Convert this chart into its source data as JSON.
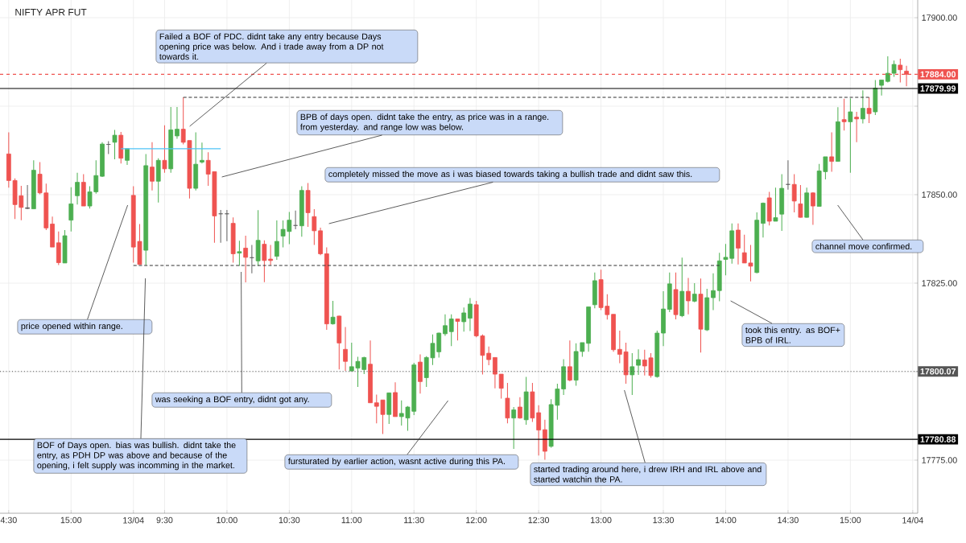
{
  "chart_data": {
    "type": "candlestick",
    "title": "NIFTY APR FUT",
    "categories": [
      "4:30",
      null,
      null,
      null,
      null,
      null,
      null,
      null,
      null,
      null,
      "15:00",
      null,
      null,
      null,
      null,
      null,
      null,
      null,
      null,
      null,
      "13/04",
      null,
      null,
      null,
      null,
      "9:30",
      null,
      null,
      null,
      null,
      null,
      null,
      null,
      null,
      null,
      "10:00",
      null,
      null,
      null,
      null,
      null,
      null,
      null,
      null,
      null,
      "10:30",
      null,
      null,
      null,
      null,
      null,
      null,
      null,
      null,
      null,
      "11:00",
      null,
      null,
      null,
      null,
      null,
      null,
      null,
      null,
      null,
      "11:30",
      null,
      null,
      null,
      null,
      null,
      null,
      null,
      null,
      null,
      "12:00",
      null,
      null,
      null,
      null,
      null,
      null,
      null,
      null,
      null,
      "12:30",
      null,
      null,
      null,
      null,
      null,
      null,
      null,
      null,
      null,
      "13:00",
      null,
      null,
      null,
      null,
      null,
      null,
      null,
      null,
      null,
      "13:30",
      null,
      null,
      null,
      null,
      null,
      null,
      null,
      null,
      null,
      "14:00",
      null,
      null,
      null,
      null,
      null,
      null,
      null,
      null,
      null,
      "14:30",
      null,
      null,
      null,
      null,
      null,
      null,
      null,
      null,
      null,
      "15:00",
      null,
      null,
      null,
      null,
      null,
      null,
      null,
      null,
      null,
      "14/04"
    ],
    "ohlc": [
      [
        17861.5,
        17867.6,
        17852.0,
        17854.0
      ],
      [
        17854.0,
        17854.6,
        17843.1,
        17847.2
      ],
      [
        17849.7,
        17852.5,
        17842.8,
        17846.4
      ],
      [
        17846.3,
        17852.7,
        17845.9,
        17846.1
      ],
      [
        17846.0,
        17859.7,
        17846.0,
        17856.9
      ],
      [
        17855.8,
        17859.2,
        17850.1,
        17850.5
      ],
      [
        17850.5,
        17853.1,
        17840.0,
        17840.6
      ],
      [
        17841.7,
        17843.8,
        17835.2,
        17835.2
      ],
      [
        17836.4,
        17839.6,
        17830.1,
        17830.8
      ],
      [
        17830.7,
        17840.0,
        17830.7,
        17838.4
      ],
      [
        17842.8,
        17852.1,
        17839.6,
        17847.4
      ],
      [
        17849.7,
        17856.2,
        17847.2,
        17853.5
      ],
      [
        17853.5,
        17855.8,
        17846.8,
        17846.8
      ],
      [
        17846.8,
        17852.4,
        17846.1,
        17850.8
      ],
      [
        17850.8,
        17859.7,
        17850.3,
        17855.4
      ],
      [
        17855.2,
        17864.8,
        17855.0,
        17864.3
      ],
      [
        17864.2,
        17865.1,
        17861.5,
        17864.2
      ],
      [
        17864.8,
        17868.3,
        17860.0,
        17866.8
      ],
      [
        17866.8,
        17867.7,
        17858.8,
        17860.3
      ],
      [
        17859.7,
        17863.0,
        17858.4,
        17863.0
      ],
      [
        17849.8,
        17852.4,
        17830.8,
        17835.2
      ],
      [
        17836.8,
        17841.7,
        17830.3,
        17830.3
      ],
      [
        17834.3,
        17861.5,
        17830.1,
        17858.2
      ],
      [
        17857.8,
        17864.8,
        17851.2,
        17853.8
      ],
      [
        17853.8,
        17860.3,
        17847.8,
        17859.7
      ],
      [
        17859.7,
        17869.6,
        17856.2,
        17857.3
      ],
      [
        17857.3,
        17874.8,
        17856.2,
        17868.3
      ],
      [
        17866.6,
        17874.8,
        17865.8,
        17868.5
      ],
      [
        17868.5,
        17877.5,
        17864.2,
        17864.8
      ],
      [
        17865.3,
        17865.3,
        17848.9,
        17851.8
      ],
      [
        17851.8,
        17867.6,
        17851.2,
        17858.6
      ],
      [
        17859.2,
        17864.7,
        17858.8,
        17859.7
      ],
      [
        17859.7,
        17862.0,
        17852.5,
        17855.8
      ],
      [
        17856.5,
        17856.5,
        17836.4,
        17844.0
      ],
      [
        17844.6,
        17845.7,
        17836.4,
        17844.6
      ],
      [
        17844.6,
        17845.7,
        17836.9,
        17844.6
      ],
      [
        17841.9,
        17843.6,
        17830.8,
        17833.3
      ],
      [
        17833.5,
        17837.0,
        17829.9,
        17833.9
      ],
      [
        17834.9,
        17838.4,
        17825.2,
        17832.3
      ],
      [
        17832.2,
        17835.8,
        17827.8,
        17832.2
      ],
      [
        17831.3,
        17845.6,
        17829.9,
        17837.1
      ],
      [
        17836.0,
        17837.1,
        17825.3,
        17831.4
      ],
      [
        17831.8,
        17835.8,
        17830.1,
        17831.4
      ],
      [
        17832.6,
        17842.7,
        17831.6,
        17836.8
      ],
      [
        17838.3,
        17842.7,
        17835.1,
        17840.2
      ],
      [
        17839.6,
        17845.1,
        17836.0,
        17842.8
      ],
      [
        17841.3,
        17845.5,
        17840.2,
        17841.3
      ],
      [
        17841.2,
        17852.4,
        17838.1,
        17851.2
      ],
      [
        17851.2,
        17853.3,
        17840.9,
        17844.9
      ],
      [
        17843.8,
        17845.9,
        17835.8,
        17839.8
      ],
      [
        17839.8,
        17840.7,
        17832.9,
        17833.3
      ],
      [
        17833.3,
        17835.1,
        17811.8,
        17813.5
      ],
      [
        17813.5,
        17820.0,
        17813.3,
        17815.4
      ],
      [
        17815.7,
        17815.8,
        17800.6,
        17808.1
      ],
      [
        17806.3,
        17812.6,
        17800.2,
        17802.9
      ],
      [
        17800.2,
        17808.2,
        17800.1,
        17801.4
      ],
      [
        17801.0,
        17804.2,
        17795.7,
        17802.9
      ],
      [
        17800.6,
        17804.2,
        17799.3,
        17804.0
      ],
      [
        17802.1,
        17808.8,
        17791.2,
        17791.2
      ],
      [
        17791.2,
        17793.5,
        17785.4,
        17790.2
      ],
      [
        17792.0,
        17792.0,
        17782.4,
        17787.9
      ],
      [
        17787.9,
        17794.1,
        17785.2,
        17794.0
      ],
      [
        17794.1,
        17797.0,
        17787.3,
        17787.3
      ],
      [
        17787.3,
        17791.9,
        17784.8,
        17788.2
      ],
      [
        17786.9,
        17790.3,
        17783.3,
        17790.0
      ],
      [
        17788.8,
        17802.5,
        17787.7,
        17801.9
      ],
      [
        17802.7,
        17804.9,
        17793.8,
        17797.2
      ],
      [
        17798.3,
        17804.4,
        17795.7,
        17804.0
      ],
      [
        17803.9,
        17810.5,
        17801.9,
        17808.0
      ],
      [
        17805.6,
        17811.0,
        17804.0,
        17810.9
      ],
      [
        17810.7,
        17816.2,
        17810.1,
        17813.0
      ],
      [
        17811.3,
        17816.2,
        17807.2,
        17814.9
      ],
      [
        17814.9,
        17814.9,
        17808.8,
        17814.2
      ],
      [
        17814.1,
        17818.1,
        17811.3,
        17816.6
      ],
      [
        17815.1,
        17820.8,
        17811.5,
        17819.1
      ],
      [
        17818.9,
        17820.0,
        17809.7,
        17810.1
      ],
      [
        17810.1,
        17810.5,
        17799.2,
        17804.6
      ],
      [
        17805.2,
        17807.1,
        17801.8,
        17803.4
      ],
      [
        17804.0,
        17804.0,
        17795.3,
        17799.3
      ],
      [
        17799.3,
        17799.3,
        17792.4,
        17795.3
      ],
      [
        17792.5,
        17796.8,
        17785.4,
        17786.9
      ],
      [
        17786.9,
        17790.0,
        17778.2,
        17789.2
      ],
      [
        17790.0,
        17792.8,
        17786.7,
        17786.9
      ],
      [
        17786.4,
        17798.5,
        17785.0,
        17794.3
      ],
      [
        17794.3,
        17796.8,
        17785.8,
        17786.9
      ],
      [
        17788.4,
        17790.5,
        17776.3,
        17783.5
      ],
      [
        17783.6,
        17786.4,
        17775.1,
        17777.5
      ],
      [
        17778.9,
        17792.2,
        17778.5,
        17790.7
      ],
      [
        17790.5,
        17796.6,
        17786.4,
        17795.1
      ],
      [
        17795.1,
        17803.5,
        17793.4,
        17801.4
      ],
      [
        17801.4,
        17808.8,
        17797.3,
        17797.6
      ],
      [
        17797.6,
        17808.0,
        17796.0,
        17805.7
      ],
      [
        17805.7,
        17808.2,
        17804.2,
        17808.2
      ],
      [
        17808.0,
        17818.3,
        17805.6,
        17818.3
      ],
      [
        17818.9,
        17828.0,
        17817.9,
        17825.7
      ],
      [
        17826.0,
        17828.8,
        17817.4,
        17818.1
      ],
      [
        17818.5,
        17821.9,
        17814.7,
        17816.1
      ],
      [
        17816.2,
        17816.2,
        17805.6,
        17806.2
      ],
      [
        17806.3,
        17811.6,
        17802.4,
        17804.9
      ],
      [
        17805.6,
        17808.2,
        17796.6,
        17799.1
      ],
      [
        17799.1,
        17805.2,
        17793.4,
        17801.4
      ],
      [
        17801.8,
        17806.3,
        17799.1,
        17803.4
      ],
      [
        17803.3,
        17806.2,
        17798.9,
        17801.6
      ],
      [
        17803.9,
        17805.2,
        17798.3,
        17798.9
      ],
      [
        17798.6,
        17811.6,
        17798.3,
        17810.9
      ],
      [
        17810.9,
        17822.7,
        17807.2,
        17817.7
      ],
      [
        17817.6,
        17828.0,
        17816.8,
        17824.8
      ],
      [
        17823.2,
        17828.0,
        17814.8,
        17816.1
      ],
      [
        17815.8,
        17832.2,
        17815.4,
        17822.7
      ],
      [
        17822.7,
        17826.5,
        17816.2,
        17820.0
      ],
      [
        17819.9,
        17825.0,
        17819.6,
        17821.9
      ],
      [
        17821.9,
        17826.3,
        17805.4,
        17812.0
      ],
      [
        17811.8,
        17823.4,
        17811.5,
        17820.9
      ],
      [
        17820.9,
        17827.8,
        17817.4,
        17822.9
      ],
      [
        17822.9,
        17833.6,
        17819.9,
        17831.3
      ],
      [
        17831.7,
        17836.1,
        17827.2,
        17832.3
      ],
      [
        17832.0,
        17841.9,
        17830.5,
        17839.8
      ],
      [
        17840.0,
        17841.9,
        17830.3,
        17834.9
      ],
      [
        17833.6,
        17838.7,
        17830.7,
        17830.7
      ],
      [
        17830.7,
        17835.8,
        17825.5,
        17829.8
      ],
      [
        17828.0,
        17845.0,
        17827.8,
        17842.8
      ],
      [
        17841.9,
        17847.8,
        17837.9,
        17847.6
      ],
      [
        17849.1,
        17850.8,
        17841.3,
        17842.5
      ],
      [
        17842.5,
        17852.0,
        17842.5,
        17843.5
      ],
      [
        17844.5,
        17855.8,
        17839.8,
        17851.8
      ],
      [
        17852.9,
        17859.7,
        17851.4,
        17852.9
      ],
      [
        17852.9,
        17855.8,
        17845.0,
        17848.2
      ],
      [
        17847.4,
        17852.7,
        17843.5,
        17843.6
      ],
      [
        17843.6,
        17852.0,
        17843.5,
        17850.5
      ],
      [
        17850.5,
        17850.7,
        17841.5,
        17846.8
      ],
      [
        17846.7,
        17858.7,
        17846.7,
        17856.7
      ],
      [
        17856.5,
        17860.7,
        17854.3,
        17860.7
      ],
      [
        17860.7,
        17867.6,
        17856.5,
        17859.4
      ],
      [
        17859.4,
        17874.7,
        17859.4,
        17870.6
      ],
      [
        17871.2,
        17877.1,
        17868.1,
        17870.6
      ],
      [
        17870.6,
        17877.2,
        17856.2,
        17873.4
      ],
      [
        17871.9,
        17873.4,
        17864.8,
        17871.4
      ],
      [
        17871.4,
        17879.5,
        17870.1,
        17874.4
      ],
      [
        17874.4,
        17877.5,
        17870.2,
        17872.9
      ],
      [
        17873.4,
        17882.4,
        17872.5,
        17880.1
      ],
      [
        17880.9,
        17882.4,
        17878.0,
        17882.4
      ],
      [
        17882.0,
        17889.1,
        17881.7,
        17884.3
      ],
      [
        17884.3,
        17887.9,
        17883.3,
        17886.8
      ],
      [
        17886.6,
        17888.4,
        17881.7,
        17885.3
      ],
      [
        17884.9,
        17886.4,
        17880.6,
        17884.0
      ],
      null
    ],
    "colors": [
      "#ef5350",
      "#ef5350",
      "#ef5350",
      "#616161",
      "#4caf50",
      "#ef5350",
      "#ef5350",
      "#ef5350",
      "#ef5350",
      "#4caf50",
      "#4caf50",
      "#4caf50",
      "#ef5350",
      "#4caf50",
      "#4caf50",
      "#4caf50",
      "#616161",
      "#4caf50",
      "#ef5350",
      "#4caf50",
      "#ef5350",
      "#ef5350",
      "#4caf50",
      "#ef5350",
      "#4caf50",
      "#ef5350",
      "#4caf50",
      "#4caf50",
      "#ef5350",
      "#ef5350",
      "#4caf50",
      "#4caf50",
      "#ef5350",
      "#ef5350",
      "#616161",
      "#616161",
      "#ef5350",
      "#4caf50",
      "#ef5350",
      "#616161",
      "#4caf50",
      "#ef5350",
      "#ef5350",
      "#4caf50",
      "#4caf50",
      "#4caf50",
      "#616161",
      "#4caf50",
      "#ef5350",
      "#ef5350",
      "#ef5350",
      "#ef5350",
      "#4caf50",
      "#ef5350",
      "#ef5350",
      "#4caf50",
      "#4caf50",
      "#4caf50",
      "#ef5350",
      "#ef5350",
      "#ef5350",
      "#4caf50",
      "#ef5350",
      "#4caf50",
      "#4caf50",
      "#4caf50",
      "#ef5350",
      "#4caf50",
      "#4caf50",
      "#4caf50",
      "#4caf50",
      "#4caf50",
      "#ef5350",
      "#4caf50",
      "#4caf50",
      "#ef5350",
      "#ef5350",
      "#ef5350",
      "#ef5350",
      "#ef5350",
      "#ef5350",
      "#4caf50",
      "#ef5350",
      "#4caf50",
      "#ef5350",
      "#ef5350",
      "#ef5350",
      "#4caf50",
      "#4caf50",
      "#4caf50",
      "#ef5350",
      "#4caf50",
      "#4caf50",
      "#4caf50",
      "#4caf50",
      "#ef5350",
      "#ef5350",
      "#ef5350",
      "#ef5350",
      "#ef5350",
      "#4caf50",
      "#4caf50",
      "#ef5350",
      "#ef5350",
      "#4caf50",
      "#4caf50",
      "#4caf50",
      "#ef5350",
      "#4caf50",
      "#ef5350",
      "#4caf50",
      "#ef5350",
      "#4caf50",
      "#4caf50",
      "#4caf50",
      "#4caf50",
      "#4caf50",
      "#ef5350",
      "#ef5350",
      "#ef5350",
      "#4caf50",
      "#4caf50",
      "#ef5350",
      "#4caf50",
      "#4caf50",
      "#616161",
      "#ef5350",
      "#ef5350",
      "#4caf50",
      "#ef5350",
      "#4caf50",
      "#4caf50",
      "#ef5350",
      "#4caf50",
      "#ef5350",
      "#4caf50",
      "#ef5350",
      "#4caf50",
      "#ef5350",
      "#4caf50",
      "#4caf50",
      "#4caf50",
      "#4caf50",
      "#ef5350",
      "#ef5350",
      null
    ],
    "series": [
      {
        "type": "line",
        "color": "#333333",
        "line_style": "dashed",
        "values": [
          null,
          null,
          null,
          null,
          null,
          null,
          null,
          null,
          null,
          null,
          null,
          null,
          null,
          null,
          null,
          null,
          null,
          null,
          null,
          null,
          null,
          null,
          null,
          null,
          null,
          null,
          null,
          null,
          17877.5,
          null,
          null,
          null,
          null,
          null,
          null,
          null,
          null,
          null,
          null,
          null,
          null,
          null,
          null,
          null,
          null,
          null,
          null,
          null,
          null,
          null,
          null,
          null,
          null,
          null,
          null,
          null,
          null,
          null,
          null,
          null,
          null,
          null,
          null,
          null,
          null,
          null,
          null,
          null,
          null,
          null,
          null,
          null,
          null,
          null,
          null,
          null,
          null,
          null,
          null,
          null,
          null,
          null,
          null,
          null,
          null,
          null,
          null,
          null,
          null,
          null,
          null,
          null,
          null,
          null,
          null,
          null,
          null,
          null,
          null,
          null,
          null,
          null,
          null,
          null,
          null,
          null,
          null,
          null,
          null,
          null,
          null,
          null,
          null,
          null,
          null,
          null,
          null,
          null,
          null,
          null,
          null,
          null,
          null,
          null,
          null,
          null,
          null,
          null,
          null,
          null,
          null,
          null,
          null,
          null,
          null,
          null,
          null,
          null,
          17877.5,
          null,
          null,
          null,
          null,
          null,
          null,
          null
        ]
      },
      {
        "type": "line",
        "color": "#333333",
        "line_style": "dashed",
        "values": [
          null,
          null,
          null,
          null,
          null,
          null,
          null,
          null,
          null,
          null,
          null,
          null,
          null,
          null,
          null,
          null,
          null,
          null,
          null,
          null,
          17830.0,
          null,
          null,
          null,
          null,
          null,
          null,
          null,
          null,
          null,
          null,
          null,
          null,
          null,
          null,
          null,
          null,
          null,
          null,
          null,
          null,
          null,
          null,
          null,
          null,
          null,
          null,
          null,
          null,
          null,
          null,
          null,
          null,
          null,
          null,
          null,
          null,
          null,
          null,
          null,
          null,
          null,
          null,
          null,
          null,
          null,
          null,
          null,
          null,
          null,
          null,
          null,
          null,
          null,
          null,
          null,
          null,
          null,
          null,
          null,
          null,
          null,
          null,
          null,
          null,
          null,
          null,
          null,
          null,
          null,
          null,
          null,
          null,
          null,
          null,
          null,
          null,
          null,
          null,
          null,
          null,
          null,
          null,
          null,
          null,
          null,
          null,
          null,
          null,
          null,
          null,
          null,
          null,
          null,
          17830.0,
          null,
          null,
          null,
          null,
          null,
          null,
          null,
          null,
          null,
          null,
          null,
          null,
          null,
          null,
          null,
          null,
          null,
          null,
          null,
          null,
          null,
          null,
          null,
          null,
          null,
          null,
          null,
          null,
          null,
          null,
          null
        ]
      },
      {
        "type": "line",
        "color": "#4fc3f7",
        "line_style": "solid",
        "values": [
          null,
          null,
          null,
          null,
          null,
          null,
          null,
          null,
          null,
          null,
          null,
          null,
          null,
          null,
          null,
          null,
          null,
          null,
          17863.0,
          null,
          null,
          null,
          null,
          null,
          null,
          null,
          null,
          null,
          null,
          null,
          null,
          null,
          null,
          null,
          17863.0,
          null,
          null,
          null,
          null,
          null,
          null,
          null,
          null,
          null,
          null,
          null,
          null,
          null,
          null,
          null,
          null,
          null,
          null,
          null,
          null,
          null,
          null,
          null,
          null,
          null,
          null,
          null,
          null,
          null,
          null,
          null,
          null,
          null,
          null,
          null,
          null,
          null,
          null,
          null,
          null,
          null,
          null,
          null,
          null,
          null,
          null,
          null,
          null,
          null,
          null,
          null,
          null,
          null,
          null,
          null,
          null,
          null,
          null,
          null,
          null,
          null,
          null,
          null,
          null,
          null,
          null,
          null,
          null,
          null,
          null,
          null,
          null,
          null,
          null,
          null,
          null,
          null,
          null,
          null,
          null,
          null,
          null,
          null,
          null,
          null,
          null,
          null,
          null,
          null,
          null,
          null,
          null,
          null,
          null,
          null,
          null,
          null,
          null,
          null,
          null,
          null,
          null,
          null,
          null,
          null,
          null,
          null,
          null,
          null,
          null,
          null
        ]
      }
    ],
    "ylim": [
      17760,
      17905
    ],
    "yticks": [
      {
        "value": 17775,
        "label": "17775.00"
      },
      {
        "value": 17800,
        "label": null
      },
      {
        "value": 17825,
        "label": "17825.00"
      },
      {
        "value": 17850,
        "label": "17850.00"
      },
      {
        "value": 17875,
        "label": null
      },
      {
        "value": 17900,
        "label": "17900.00"
      }
    ],
    "grid": true,
    "ref_lines": [
      {
        "axis": "y",
        "value": 17884.0,
        "label": "17884.00",
        "color": "#ef5350",
        "line_style": "dashed"
      },
      {
        "axis": "y",
        "value": 17879.99,
        "label": "17879.99",
        "color": "#000000",
        "line_style": "solid"
      },
      {
        "axis": "y",
        "value": 17800.07,
        "label": "17800.07",
        "color": "#555555",
        "line_style": "dotted"
      },
      {
        "axis": "y",
        "value": 17780.88,
        "label": "17780.88",
        "color": "#000000",
        "line_style": "solid"
      }
    ],
    "annotations": [
      "Failed a BOF of PDC. didnt take any entry because Days opening price was below. And i trade away from a DP not towards it.",
      "BPB of days open. didnt take the entry, as price was in a range. from yesterday. and range low was below.",
      "completely missed the move as i was biased towards taking a bullish trade and didnt saw this.",
      "price opened within range.",
      "BOF of Days open. bias was bullish. didnt take the entry, as PDH DP was above and because of the opening, i felt supply was incomming in the market.",
      "was seeking a BOF entry, didnt got any.",
      "fursturated by earlier action, wasnt active during this PA.",
      "started trading around here, i drew IRH and IRL above and started watchin the PA.",
      "took this entry. as BOF+ BPB of IRL.",
      "channel move confirmed."
    ]
  }
}
